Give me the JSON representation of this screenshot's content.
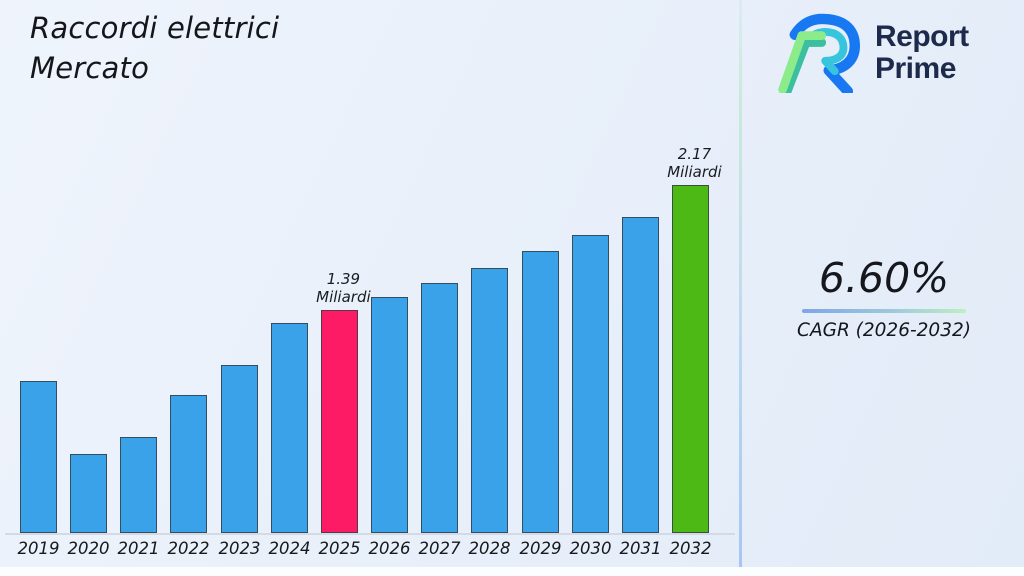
{
  "title": {
    "line1": "Raccordi elettrici",
    "line2": "Mercato"
  },
  "logo": {
    "name_line1": "Report",
    "name_line2": "Prime",
    "colors": {
      "blue": "#1878F2",
      "cyan": "#37C5DE",
      "light_green": "#8CEC8C",
      "teal": "#3BBFA0",
      "text_navy": "#1d2a4c"
    }
  },
  "cagr": {
    "value": "6.60%",
    "label": "CAGR (2026-2032)"
  },
  "chart_data": {
    "type": "bar",
    "title": "Raccordi elettrici Mercato",
    "xlabel": "",
    "ylabel": "",
    "unit": "Miliardi",
    "categories": [
      "2019",
      "2020",
      "2021",
      "2022",
      "2023",
      "2024",
      "2025",
      "2026",
      "2027",
      "2028",
      "2029",
      "2030",
      "2031",
      "2032"
    ],
    "values": [
      0.95,
      0.49,
      0.6,
      0.86,
      1.05,
      1.31,
      1.39,
      1.47,
      1.56,
      1.65,
      1.76,
      1.86,
      1.97,
      2.17
    ],
    "ylim": [
      0,
      2.5
    ],
    "grid": false,
    "legend": false,
    "bar_color": "#3AA2E9",
    "bar_border_color": "#39434c",
    "highlights": {
      "2025": "#FC1B64",
      "2032": "#4CB914"
    },
    "annotations": [
      {
        "category": "2025",
        "lines": [
          "1.39",
          "Miliardi"
        ],
        "value": 1.39
      },
      {
        "category": "2032",
        "lines": [
          "2.17",
          "Miliardi"
        ],
        "value": 2.17
      }
    ]
  }
}
